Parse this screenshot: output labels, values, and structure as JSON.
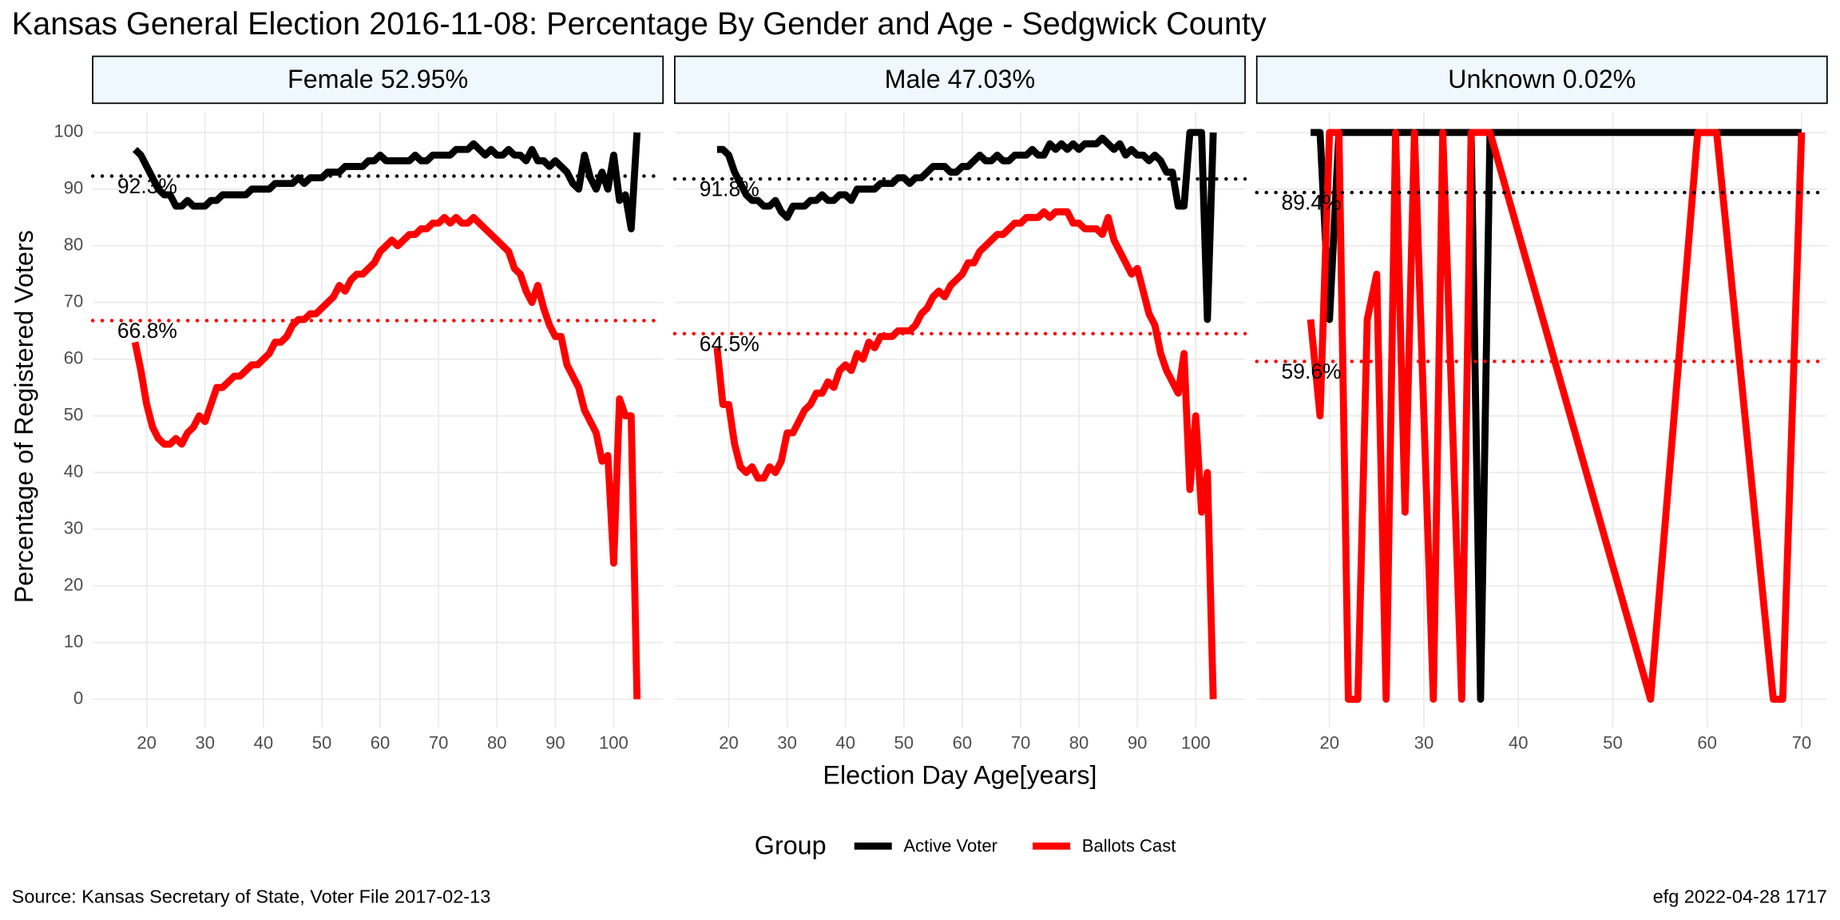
{
  "title": "Kansas General Election 2016-11-08:  Percentage By Gender and Age - Sedgwick County",
  "x_label": "Election Day Age[years]",
  "y_label": "Percentage of Registered Voters",
  "source": "Source:  Kansas Secretary of State, Voter File  2017-02-13",
  "credit": "efg 2022-04-28 1717",
  "legend": {
    "title": "Group",
    "entries": [
      {
        "name": "Active Voter",
        "color": "#000000"
      },
      {
        "name": "Ballots Cast",
        "color": "#ff0000"
      }
    ]
  },
  "chart_data": [
    {
      "type": "line",
      "title": "Female 52.95%",
      "x": [
        18,
        19,
        20,
        21,
        22,
        23,
        24,
        25,
        26,
        27,
        28,
        29,
        30,
        31,
        32,
        33,
        34,
        35,
        36,
        37,
        38,
        39,
        40,
        41,
        42,
        43,
        44,
        45,
        46,
        47,
        48,
        49,
        50,
        51,
        52,
        53,
        54,
        55,
        56,
        57,
        58,
        59,
        60,
        61,
        62,
        63,
        64,
        65,
        66,
        67,
        68,
        69,
        70,
        71,
        72,
        73,
        74,
        75,
        76,
        77,
        78,
        79,
        80,
        81,
        82,
        83,
        84,
        85,
        86,
        87,
        88,
        89,
        90,
        91,
        92,
        93,
        94,
        95,
        96,
        97,
        98,
        99,
        100,
        101,
        102,
        103,
        104
      ],
      "series": [
        {
          "values": [
            97,
            96,
            94,
            92,
            90,
            89,
            89,
            87,
            87,
            88,
            87,
            87,
            87,
            88,
            88,
            89,
            89,
            89,
            89,
            89,
            90,
            90,
            90,
            90,
            91,
            91,
            91,
            91,
            92,
            91,
            92,
            92,
            92,
            93,
            93,
            93,
            94,
            94,
            94,
            94,
            95,
            95,
            96,
            95,
            95,
            95,
            95,
            95,
            96,
            95,
            95,
            96,
            96,
            96,
            96,
            97,
            97,
            97,
            98,
            97,
            96,
            97,
            96,
            96,
            97,
            96,
            96,
            95,
            97,
            95,
            95,
            94,
            95,
            94,
            93,
            91,
            90,
            96,
            92,
            90,
            93,
            90,
            96,
            88,
            89,
            83,
            100
          ]
        },
        {
          "values": [
            63,
            58,
            52,
            48,
            46,
            45,
            45,
            46,
            45,
            47,
            48,
            50,
            49,
            52,
            55,
            55,
            56,
            57,
            57,
            58,
            59,
            59,
            60,
            61,
            63,
            63,
            64,
            66,
            67,
            67,
            68,
            68,
            69,
            70,
            71,
            73,
            72,
            74,
            75,
            75,
            76,
            77,
            79,
            80,
            81,
            80,
            81,
            82,
            82,
            83,
            83,
            84,
            84,
            85,
            84,
            85,
            84,
            84,
            85,
            84,
            83,
            82,
            81,
            80,
            79,
            76,
            75,
            72,
            70,
            73,
            69,
            66,
            64,
            64,
            59,
            57,
            55,
            51,
            49,
            47,
            42,
            43,
            24,
            53,
            50,
            50,
            0
          ]
        }
      ],
      "hlines": [
        {
          "value": 92.3,
          "label": "92.3%"
        },
        {
          "value": 66.8,
          "label": "66.8%"
        }
      ],
      "xlim": [
        10.75,
        108.45
      ],
      "xticks": [
        20,
        30,
        40,
        50,
        60,
        70,
        80,
        90,
        100
      ],
      "ylim": [
        -5,
        103.7
      ],
      "yticks": [
        0,
        10,
        20,
        30,
        40,
        50,
        60,
        70,
        80,
        90,
        100
      ]
    },
    {
      "type": "line",
      "title": "Male 47.03%",
      "x": [
        18,
        19,
        20,
        21,
        22,
        23,
        24,
        25,
        26,
        27,
        28,
        29,
        30,
        31,
        32,
        33,
        34,
        35,
        36,
        37,
        38,
        39,
        40,
        41,
        42,
        43,
        44,
        45,
        46,
        47,
        48,
        49,
        50,
        51,
        52,
        53,
        54,
        55,
        56,
        57,
        58,
        59,
        60,
        61,
        62,
        63,
        64,
        65,
        66,
        67,
        68,
        69,
        70,
        71,
        72,
        73,
        74,
        75,
        76,
        77,
        78,
        79,
        80,
        81,
        82,
        83,
        84,
        85,
        86,
        87,
        88,
        89,
        90,
        91,
        92,
        93,
        94,
        95,
        96,
        97,
        98,
        99,
        100,
        101,
        102,
        103
      ],
      "series": [
        {
          "values": [
            97,
            97,
            96,
            93,
            91,
            89,
            88,
            88,
            87,
            87,
            88,
            86,
            85,
            87,
            87,
            87,
            88,
            88,
            89,
            88,
            88,
            89,
            89,
            88,
            90,
            90,
            90,
            90,
            91,
            91,
            91,
            92,
            92,
            91,
            92,
            92,
            93,
            94,
            94,
            94,
            93,
            93,
            94,
            94,
            95,
            96,
            95,
            95,
            96,
            95,
            95,
            96,
            96,
            96,
            97,
            96,
            96,
            98,
            97,
            98,
            97,
            98,
            97,
            98,
            98,
            98,
            99,
            98,
            97,
            98,
            96,
            97,
            96,
            96,
            95,
            96,
            95,
            93,
            93,
            87,
            87,
            100,
            100,
            100,
            67,
            100
          ]
        },
        {
          "values": [
            62,
            52,
            52,
            45,
            41,
            40,
            41,
            39,
            39,
            41,
            40,
            42,
            47,
            47,
            49,
            51,
            52,
            54,
            54,
            56,
            55,
            58,
            59,
            58,
            61,
            60,
            63,
            62,
            64,
            64,
            64,
            65,
            65,
            65,
            66,
            68,
            69,
            71,
            72,
            71,
            73,
            74,
            75,
            77,
            77,
            79,
            80,
            81,
            82,
            82,
            83,
            84,
            84,
            85,
            85,
            85,
            86,
            85,
            86,
            86,
            86,
            84,
            84,
            83,
            83,
            83,
            82,
            85,
            81,
            79,
            77,
            75,
            76,
            72,
            68,
            66,
            61,
            58,
            56,
            54,
            61,
            37,
            50,
            33,
            40,
            0
          ]
        }
      ],
      "hlines": [
        {
          "value": 91.8,
          "label": "91.8%"
        },
        {
          "value": 64.5,
          "label": "64.5%"
        }
      ],
      "xlim": [
        10.75,
        108.45
      ],
      "xticks": [
        20,
        30,
        40,
        50,
        60,
        70,
        80,
        90,
        100
      ],
      "ylim": [
        -5,
        103.7
      ],
      "yticks": [
        0,
        10,
        20,
        30,
        40,
        50,
        60,
        70,
        80,
        90,
        100
      ]
    },
    {
      "type": "line",
      "title": "Unknown 0.02%",
      "x": [
        18,
        19,
        20,
        21,
        22,
        23,
        24,
        25,
        26,
        27,
        28,
        29,
        31,
        32,
        34,
        35,
        36,
        37,
        54,
        59,
        61,
        67,
        68,
        70
      ],
      "series": [
        {
          "values": [
            100,
            100,
            67,
            100,
            100,
            100,
            100,
            100,
            100,
            100,
            100,
            100,
            100,
            100,
            100,
            100,
            0,
            100,
            100,
            100,
            100,
            100,
            100,
            100
          ]
        },
        {
          "values": [
            67,
            50,
            100,
            100,
            0,
            0,
            67,
            75,
            0,
            100,
            33,
            100,
            0,
            100,
            0,
            100,
            100,
            100,
            0,
            100,
            100,
            0,
            0,
            100
          ]
        }
      ],
      "hlines": [
        {
          "value": 89.4,
          "label": "89.4%"
        },
        {
          "value": 59.6,
          "label": "59.6%"
        }
      ],
      "xlim": [
        12.3,
        72.7
      ],
      "xticks": [
        20,
        30,
        40,
        50,
        60,
        70
      ],
      "ylim": [
        -5,
        103.7
      ],
      "yticks": [
        0,
        10,
        20,
        30,
        40,
        50,
        60,
        70,
        80,
        90,
        100
      ]
    }
  ]
}
